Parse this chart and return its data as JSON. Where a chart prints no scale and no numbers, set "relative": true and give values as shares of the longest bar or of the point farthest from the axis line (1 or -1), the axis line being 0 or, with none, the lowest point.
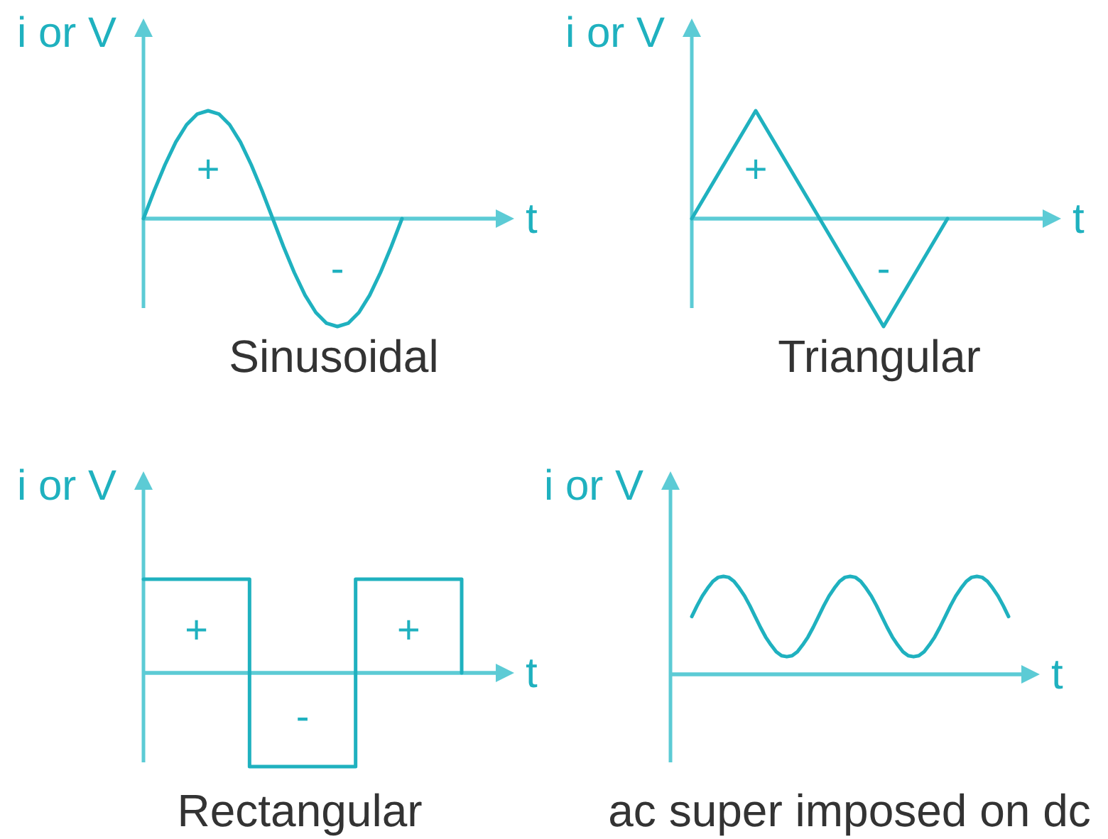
{
  "chart_data": [
    {
      "type": "line",
      "title": "Sinusoidal",
      "xlabel": "t",
      "ylabel": "i or V",
      "relative": true,
      "categories": [
        null,
        null,
        null,
        null,
        null,
        null,
        null,
        null,
        null,
        null,
        null,
        null,
        null,
        null,
        null,
        null,
        null,
        null,
        null,
        null,
        null,
        null,
        null,
        null,
        null
      ],
      "values": [
        0,
        0.26,
        0.5,
        0.71,
        0.87,
        0.97,
        1,
        0.97,
        0.87,
        0.71,
        0.5,
        0.26,
        0,
        -0.26,
        -0.5,
        -0.71,
        -0.87,
        -0.97,
        -1,
        -0.97,
        -0.87,
        -0.71,
        -0.5,
        -0.26,
        0
      ],
      "color": "#1fb1bf",
      "ref_lines": [
        {
          "axis": "y",
          "value": 0,
          "color": "#5ccbd5"
        }
      ],
      "annotations": [
        "+",
        "-"
      ]
    },
    {
      "type": "line",
      "title": "Triangular",
      "xlabel": "t",
      "ylabel": "i or V",
      "relative": true,
      "categories": [
        null,
        null,
        null,
        null,
        null
      ],
      "values": [
        0,
        1,
        0,
        -1,
        0
      ],
      "color": "#1fb1bf",
      "ref_lines": [
        {
          "axis": "y",
          "value": 0,
          "color": "#5ccbd5"
        }
      ],
      "annotations": [
        "+",
        "-"
      ]
    },
    {
      "type": "step",
      "title": "Rectangular",
      "xlabel": "t",
      "ylabel": "i or V",
      "relative": true,
      "categories": [
        null,
        null,
        null,
        null
      ],
      "values": [
        1,
        -1,
        1,
        0
      ],
      "color": "#1fb1bf",
      "ref_lines": [
        {
          "axis": "y",
          "value": 0,
          "color": "#5ccbd5"
        }
      ],
      "annotations": [
        "+",
        "-",
        "+"
      ]
    },
    {
      "type": "line",
      "title": "ac super imposed on dc",
      "xlabel": "t",
      "ylabel": "i or V",
      "relative": true,
      "categories": [
        null,
        null,
        null,
        null,
        null,
        null,
        null,
        null,
        null,
        null,
        null,
        null,
        null,
        null,
        null,
        null,
        null,
        null,
        null,
        null,
        null,
        null,
        null,
        null,
        null,
        null,
        null,
        null,
        null,
        null,
        null,
        null,
        null,
        null,
        null,
        null,
        null,
        null,
        null,
        null,
        null,
        null,
        null,
        null,
        null,
        null,
        null,
        null,
        null,
        null,
        null,
        null,
        null,
        null,
        null,
        null,
        null,
        null,
        null,
        null,
        null
      ],
      "values": [
        0.59,
        0.7,
        0.8,
        0.88,
        0.95,
        0.99,
        1,
        0.99,
        0.95,
        0.88,
        0.8,
        0.7,
        0.59,
        0.48,
        0.38,
        0.3,
        0.23,
        0.19,
        0.18,
        0.19,
        0.23,
        0.3,
        0.38,
        0.48,
        0.59,
        0.7,
        0.8,
        0.88,
        0.95,
        0.99,
        1,
        0.99,
        0.95,
        0.88,
        0.8,
        0.7,
        0.59,
        0.48,
        0.38,
        0.3,
        0.23,
        0.19,
        0.18,
        0.19,
        0.23,
        0.3,
        0.38,
        0.48,
        0.59,
        0.7,
        0.8,
        0.88,
        0.95,
        0.99,
        1,
        0.99,
        0.95,
        0.88,
        0.8,
        0.7,
        0.59
      ],
      "color": "#1fb1bf",
      "ref_lines": [
        {
          "axis": "y",
          "value": 0,
          "color": "#5ccbd5"
        }
      ]
    }
  ]
}
